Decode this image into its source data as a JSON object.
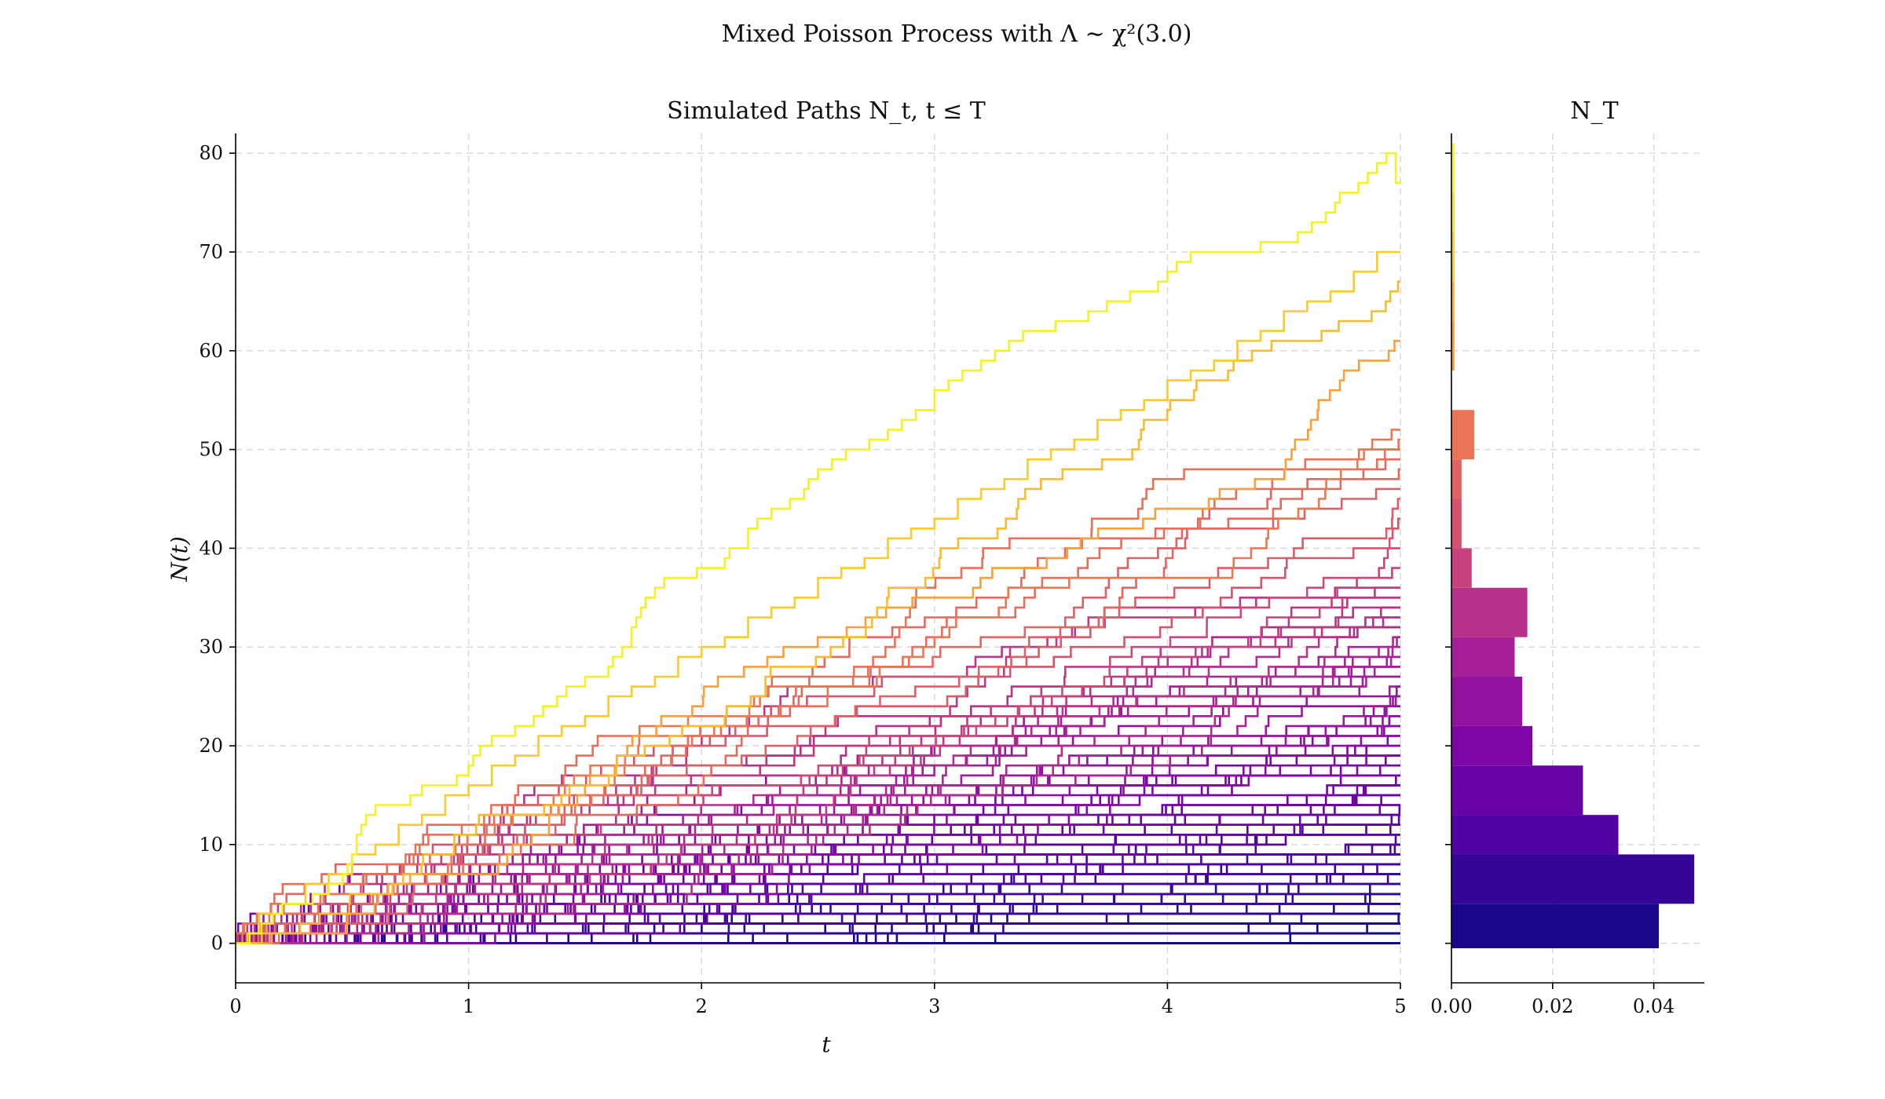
{
  "suptitle": "Mixed Poisson Process with Λ ∼ χ²(3.0)",
  "chart_data": [
    {
      "type": "line",
      "title": "Simulated Paths N_t, t ≤ T",
      "xlabel": "t",
      "ylabel": "N(t)",
      "xlim": [
        0,
        5
      ],
      "ylim": [
        -4,
        82
      ],
      "xticks": [
        0,
        1,
        2,
        3,
        4,
        5
      ],
      "yticks": [
        0,
        10,
        20,
        30,
        40,
        50,
        60,
        70,
        80
      ],
      "grid": true,
      "colormap": "plasma",
      "step": true,
      "series": [
        {
          "x": [
            0.06,
            0.11,
            0.16,
            0.2,
            0.33,
            0.4,
            0.46,
            0.48,
            0.5,
            0.52,
            0.54,
            0.56,
            0.6,
            0.75,
            0.8,
            0.95,
            1.0,
            1.02,
            1.05,
            1.1,
            1.2,
            1.28,
            1.32,
            1.38,
            1.42,
            1.5,
            1.6,
            1.62,
            1.66,
            1.7,
            1.72,
            1.74,
            1.76,
            1.8,
            1.84,
            1.98,
            2.1,
            2.12,
            2.2,
            2.24,
            2.3,
            2.38,
            2.44,
            2.46,
            2.5,
            2.56,
            2.62,
            2.72,
            2.8,
            2.86,
            2.92,
            3.0,
            3.06,
            3.12,
            3.2,
            3.26,
            3.32,
            3.38,
            3.52,
            3.66,
            3.74,
            3.84,
            3.96,
            4.0,
            4.04,
            4.1,
            4.4,
            4.56,
            4.62,
            4.68,
            4.72,
            4.74,
            4.82,
            4.86,
            4.9,
            4.94,
            4.98
          ],
          "y": [
            1,
            2,
            3,
            4,
            5,
            6,
            7,
            8,
            9,
            11,
            12,
            13,
            14,
            15,
            16,
            17,
            18,
            19,
            20,
            21,
            22,
            23,
            24,
            25,
            26,
            27,
            28,
            29,
            30,
            32,
            33,
            34,
            35,
            36,
            37,
            38,
            39,
            40,
            42,
            43,
            44,
            45,
            46,
            47,
            48,
            49,
            50,
            51,
            52,
            53,
            54,
            56,
            57,
            58,
            59,
            60,
            61,
            62,
            63,
            64,
            65,
            66,
            67,
            68,
            69,
            70,
            71,
            72,
            73,
            74,
            75,
            76,
            77,
            78,
            79,
            80,
            77
          ]
        },
        {
          "x": [
            0.05,
            0.1,
            0.2,
            0.3,
            0.4,
            0.5,
            0.6,
            0.7,
            0.8,
            0.9,
            1.0,
            1.1,
            1.2,
            1.3,
            1.4,
            1.5,
            1.6,
            1.7,
            1.8,
            1.9,
            2.0,
            2.1,
            2.2,
            2.3,
            2.4,
            2.5,
            2.6,
            2.7,
            2.8,
            2.9,
            3.0,
            3.1,
            3.2,
            3.3,
            3.4,
            3.5,
            3.6,
            3.7,
            3.8,
            3.9,
            4.0,
            4.1,
            4.2,
            4.3,
            4.4,
            4.5,
            4.6,
            4.7,
            4.8,
            4.9
          ],
          "y": [
            1,
            3,
            4,
            6,
            7,
            9,
            10,
            12,
            13,
            15,
            16,
            18,
            19,
            21,
            22,
            23,
            25,
            26,
            27,
            29,
            30,
            31,
            33,
            34,
            35,
            37,
            38,
            39,
            41,
            42,
            43,
            45,
            46,
            47,
            49,
            50,
            51,
            53,
            54,
            55,
            57,
            58,
            59,
            61,
            62,
            64,
            65,
            66,
            68,
            70
          ]
        }
      ]
    },
    {
      "type": "bar",
      "orientation": "horizontal",
      "title": "N_T",
      "xlim": [
        0,
        0.05
      ],
      "xticks": [
        0.0,
        0.02,
        0.04
      ],
      "xtick_labels": [
        "0.00",
        "0.02",
        "0.04"
      ],
      "bins": [
        {
          "from": -0.5,
          "to": 4,
          "value": 0.041
        },
        {
          "from": 4,
          "to": 9,
          "value": 0.048
        },
        {
          "from": 9,
          "to": 13,
          "value": 0.033
        },
        {
          "from": 13,
          "to": 18,
          "value": 0.026
        },
        {
          "from": 18,
          "to": 22,
          "value": 0.016
        },
        {
          "from": 22,
          "to": 27,
          "value": 0.014
        },
        {
          "from": 27,
          "to": 31,
          "value": 0.0125
        },
        {
          "from": 31,
          "to": 36,
          "value": 0.015
        },
        {
          "from": 36,
          "to": 40,
          "value": 0.004
        },
        {
          "from": 40,
          "to": 45,
          "value": 0.002
        },
        {
          "from": 45,
          "to": 49,
          "value": 0.002
        },
        {
          "from": 49,
          "to": 54,
          "value": 0.0045
        },
        {
          "from": 58,
          "to": 63,
          "value": 0.0006
        },
        {
          "from": 63,
          "to": 67,
          "value": 0.0006
        },
        {
          "from": 67,
          "to": 72,
          "value": 0.0006
        },
        {
          "from": 72,
          "to": 76,
          "value": 0.0006
        },
        {
          "from": 76,
          "to": 81,
          "value": 0.0006
        }
      ]
    }
  ]
}
